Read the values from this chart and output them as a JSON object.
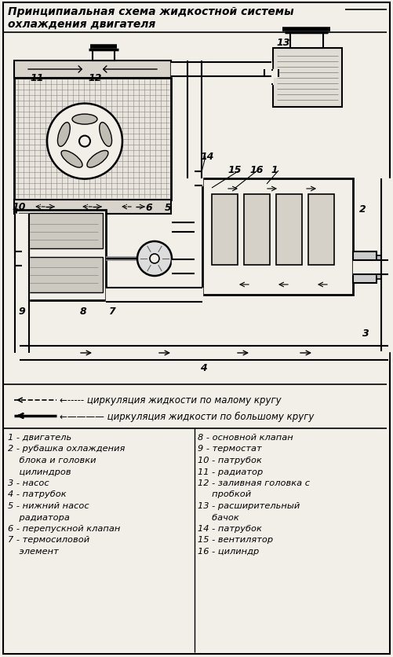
{
  "title": "Принципиальная схема жидкостной системы\nохлаждения двигателя",
  "bg_color": "#f2efe9",
  "border_color": "#000000",
  "legend_dashed": "←----- циркуляция жидкости по малому кругу",
  "legend_solid": "←———— циркуляция жидкости по большому кругу",
  "parts_left": [
    "1 - двигатель",
    "2 - рубашка охлаждения",
    "    блока и головки",
    "    цилиндров",
    "3 - насос",
    "4 - патрубок",
    "5 - нижний насос",
    "    радиатора",
    "6 - перепускной клапан",
    "7 - термосиловой",
    "    элемент"
  ],
  "parts_right": [
    "8 - основной клапан",
    "9 - термостат",
    "10 - патрубок",
    "11 - радиатор",
    "12 - заливная головка с",
    "     пробкой",
    "13 - расширительный",
    "     бачок",
    "14 - патрубок",
    "15 - вентилятор",
    "16 - цилиндр"
  ]
}
